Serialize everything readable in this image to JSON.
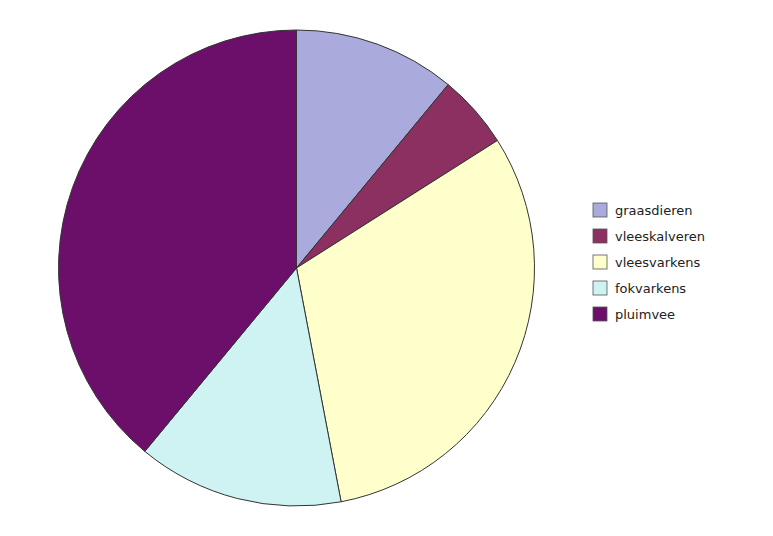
{
  "chart_data": {
    "type": "pie",
    "categories": [
      "graasdieren",
      "vleeskalveren",
      "vleesvarkens",
      "fokvarkens",
      "pluimvee"
    ],
    "values": [
      11,
      5,
      31,
      14,
      39
    ],
    "colors": [
      "#aaaadd",
      "#8b3060",
      "#ffffcc",
      "#cff2f2",
      "#6b0f6b"
    ],
    "legend": "right"
  }
}
